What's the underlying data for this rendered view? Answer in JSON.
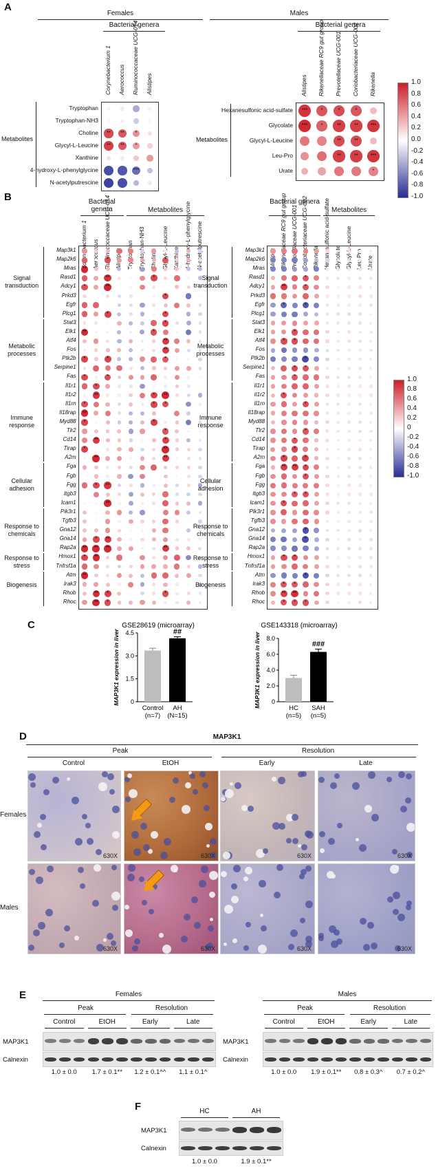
{
  "panel_labels": [
    "A",
    "B",
    "C",
    "D",
    "E",
    "F"
  ],
  "A": {
    "females": {
      "title": "Females",
      "subtitle": "Bacterial genera",
      "group_label": "Metabolites",
      "genera": [
        "Corynebacterium 1",
        "Aerococcus",
        "Ruminococcaceae UCG-014",
        "Alistipes"
      ],
      "metabolites": [
        "Tryptophan",
        "Tryptophan-NH3",
        "Choline",
        "Glycyl-L-Leucine",
        "Xanthine",
        "4-hydroxy-L-phenylglycine",
        "N-acetylputrescine"
      ],
      "values": [
        [
          0.06,
          0.1,
          -0.4,
          0.08
        ],
        [
          0.05,
          0.08,
          -0.25,
          0.05
        ],
        [
          0.8,
          0.75,
          0.5,
          0.15
        ],
        [
          0.85,
          0.75,
          0.45,
          0.2
        ],
        [
          0.15,
          0.1,
          0.25,
          0.45
        ],
        [
          -0.85,
          -0.8,
          -0.7,
          -0.3
        ],
        [
          -0.9,
          -0.85,
          -0.35,
          -0.1
        ]
      ],
      "stars": [
        [
          "",
          "",
          "",
          ""
        ],
        [
          "",
          "",
          "",
          ""
        ],
        [
          "**",
          "**",
          "*",
          ""
        ],
        [
          "**",
          "**",
          "*",
          ""
        ],
        [
          "",
          "",
          "",
          ""
        ],
        [
          "",
          "",
          "***",
          ""
        ],
        [
          "",
          "",
          "",
          ""
        ]
      ]
    },
    "males": {
      "title": "Males",
      "subtitle": "Bacterial genera",
      "group_label": "Metabolites",
      "genera": [
        "Alistipes",
        "Rikenellaceae RC9 gut group",
        "Prevotellaceae UCG-001",
        "Coriobacteriaceae UCG-002",
        "Rikenella"
      ],
      "metabolites": [
        "Hexanesulfonic acid-sulfate",
        "Glycolate",
        "Glycyl-L-Leucine",
        "Leu-Pro",
        "Urate"
      ],
      "values": [
        [
          0.9,
          0.75,
          0.8,
          0.75,
          0.3
        ],
        [
          0.95,
          0.7,
          0.85,
          0.85,
          0.9
        ],
        [
          0.6,
          0.55,
          0.8,
          0.8,
          0.3
        ],
        [
          0.5,
          0.65,
          0.85,
          0.85,
          0.9
        ],
        [
          0.35,
          0.4,
          0.6,
          0.6,
          0.55
        ]
      ],
      "stars": [
        [
          "***",
          "*",
          "*",
          "*",
          ""
        ],
        [
          "***",
          "*",
          "**",
          "**",
          "***"
        ],
        [
          "",
          "",
          "**",
          "**",
          ""
        ],
        [
          "",
          "",
          "**",
          "**",
          "***"
        ],
        [
          "",
          "",
          "",
          "",
          "*"
        ]
      ]
    },
    "colorbar_ticks": [
      "1.0",
      "0.8",
      "0.6",
      "0.4",
      "0.2",
      "0.0",
      "-0.2",
      "-0.4",
      "-0.6",
      "-0.8",
      "-1.0"
    ]
  },
  "B": {
    "genera_label": "Bacterial genera",
    "metabolites_label": "Metabolites",
    "females_cols": [
      "Corynebacterium 1",
      "Aerococcus",
      "Ruminococcaceae UCG-014",
      "Alistipes",
      "Tryptophan",
      "Tryptophan-NH3",
      "Choline",
      "Glycyl-L-Leucine",
      "Xanthine",
      "4-hydroxy-L-phenylglycine",
      "N-acetylputrescine"
    ],
    "males_cols": [
      "Alistipes",
      "Rikenellaceae RC9 gut group",
      "Prevotellaceae UCG-001",
      "Coriobacteriaceae UCG-002",
      "Rikenella",
      "Hexanesulfonic acid-sulfate",
      "Glycolate",
      "Glycyl-L-Leucine",
      "Leu-Pro",
      "Urate"
    ],
    "genes": [
      "Map3k1",
      "Map2k6",
      "Mras",
      "Rasd1",
      "Adcy1",
      "Prkd3",
      "Egfr",
      "Plcg1",
      "Stat3",
      "Elk1",
      "Atf4",
      "Fos",
      "Ptk2b",
      "Serpine1",
      "Fas",
      "Il1r1",
      "Il1r2",
      "Il1rn",
      "Il18rap",
      "Myd88",
      "Tlr2",
      "Cd14",
      "Tirap",
      "A2m",
      "Fga",
      "Fgb",
      "Fgg",
      "Itgb3",
      "Icam1",
      "Pik3r1",
      "Tgfb3",
      "Gna12",
      "Gna14",
      "Rap2a",
      "Hmox1",
      "Tnfrsf1a",
      "Atm",
      "Irak3",
      "Rhob",
      "Rhoc"
    ],
    "groups": [
      {
        "label": "Signal transduction",
        "start": 0,
        "end": 7
      },
      {
        "label": "Metabolic processes",
        "start": 8,
        "end": 14
      },
      {
        "label": "Immune response",
        "start": 15,
        "end": 23
      },
      {
        "label": "Cellular adhesion",
        "start": 24,
        "end": 28
      },
      {
        "label": "Response to chemicals",
        "start": 29,
        "end": 33
      },
      {
        "label": "Response to stress",
        "start": 34,
        "end": 35
      },
      {
        "label": "Biogenesis",
        "start": 36,
        "end": 39
      }
    ],
    "colorbar_ticks": [
      "1.0",
      "0.8",
      "0.6",
      "0.4",
      "0.2",
      "0",
      "-0.2",
      "-0.4",
      "-0.6",
      "-0.8",
      "-1.0"
    ]
  },
  "C": {
    "charts": [
      {
        "title": "GSE28619 (microarray)",
        "ylabel": "MAP3K1 expression in liver",
        "categories": [
          "Control",
          "AH"
        ],
        "ns": [
          "(n=7)",
          "(N=15)"
        ],
        "values": [
          3.35,
          4.15
        ],
        "errors": [
          0.15,
          0.1
        ],
        "ylim": [
          0,
          4.5
        ],
        "ticks": [
          "0",
          "1.5",
          "3.0",
          "4.5"
        ],
        "sig": "##"
      },
      {
        "title": "GSE143318 (microarray)",
        "ylabel": "MAP3K1 expression in liver",
        "categories": [
          "HC",
          "SAH"
        ],
        "ns": [
          "(n=5)",
          "(n=5)"
        ],
        "values": [
          3.0,
          6.3
        ],
        "errors": [
          0.35,
          0.35
        ],
        "ylim": [
          0,
          8.0
        ],
        "ticks": [
          "0",
          "2.0",
          "4.0",
          "6.0",
          "8.0"
        ],
        "sig": "###"
      }
    ]
  },
  "D": {
    "title": "MAP3K1",
    "peak": "Peak",
    "resolution": "Resolution",
    "columns": [
      "Control",
      "EtOH",
      "Early",
      "Late"
    ],
    "rows": [
      "Females",
      "Males"
    ],
    "magnification": "630X"
  },
  "E": {
    "females": {
      "title": "Females",
      "peak": "Peak",
      "resolution": "Resolution",
      "groups": [
        "Control",
        "EtOH",
        "Early",
        "Late"
      ],
      "protein": "MAP3K1",
      "loading": "Calnexin",
      "quant": [
        "1.0 ± 0.0",
        "1.7 ± 0.1**",
        "1.2 ± 0.1^^",
        "1.1 ± 0.1^"
      ]
    },
    "males": {
      "title": "Males",
      "peak": "Peak",
      "resolution": "Resolution",
      "groups": [
        "Control",
        "EtOH",
        "Early",
        "Late"
      ],
      "protein": "MAP3K1",
      "loading": "Calnexin",
      "quant": [
        "1.0 ± 0.0",
        "1.9 ± 0.1**",
        "0.8 ± 0.3^",
        "0.7 ± 0.2^"
      ]
    }
  },
  "F": {
    "groups": [
      "HC",
      "AH"
    ],
    "protein": "MAP3K1",
    "loading": "Calnexin",
    "quant": [
      "1.0 ± 0.0",
      "1.9 ± 0.1**"
    ]
  }
}
